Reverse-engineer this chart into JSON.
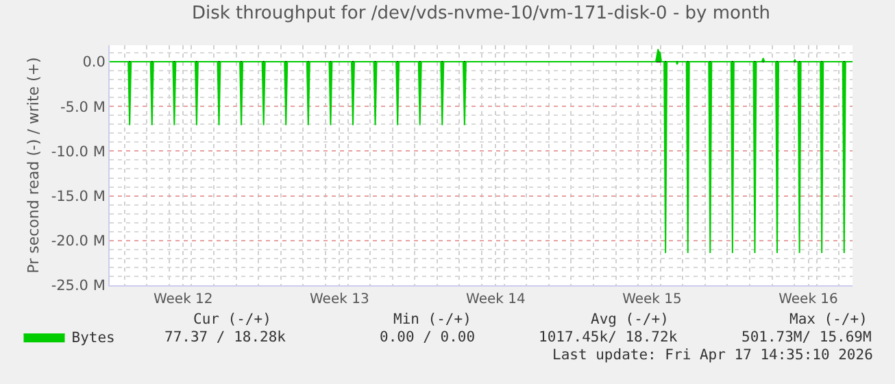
{
  "chart_data": {
    "type": "area",
    "title": "Disk throughput for /dev/vds-nvme-10/vm-171-disk-0 - by month",
    "ylabel": "Pr second read (-) / write (+)",
    "xlim": [
      "2026-03-15T08:00",
      "2026-04-17T14:30"
    ],
    "xticks": [
      {
        "value": "2026-03-18T15:00",
        "label": "Week 12"
      },
      {
        "value": "2026-03-25T15:00",
        "label": "Week 13"
      },
      {
        "value": "2026-04-01T15:00",
        "label": "Week 14"
      },
      {
        "value": "2026-04-08T15:00",
        "label": "Week 15"
      },
      {
        "value": "2026-04-15T15:00",
        "label": "Week 16"
      }
    ],
    "ylim": [
      -25,
      1.84
    ],
    "yticks": [
      {
        "value": 0,
        "label": "0.0"
      },
      {
        "value": -5,
        "label": "-5.0 M"
      },
      {
        "value": -10,
        "label": "-10.0 M"
      },
      {
        "value": -15,
        "label": "-15.0 M"
      },
      {
        "value": -20,
        "label": "-20.0 M"
      },
      {
        "value": -25,
        "label": "-25.0 M"
      }
    ],
    "grid": true,
    "legend": "bottom left",
    "series": [
      {
        "name": "Bytes",
        "color": "#00cc00",
        "x": [
          "2026-03-15T08:00",
          "2026-03-16T04:00",
          "2026-03-16T05:30",
          "2026-03-16T07:00",
          "2026-03-17T04:00",
          "2026-03-17T05:30",
          "2026-03-17T07:00",
          "2026-03-18T04:00",
          "2026-03-18T05:30",
          "2026-03-18T07:00",
          "2026-03-19T04:00",
          "2026-03-19T05:30",
          "2026-03-19T07:00",
          "2026-03-20T04:00",
          "2026-03-20T05:30",
          "2026-03-20T07:00",
          "2026-03-21T04:00",
          "2026-03-21T05:30",
          "2026-03-21T07:00",
          "2026-03-22T04:00",
          "2026-03-22T05:30",
          "2026-03-22T07:00",
          "2026-03-23T04:00",
          "2026-03-23T05:30",
          "2026-03-23T07:00",
          "2026-03-24T04:00",
          "2026-03-24T05:30",
          "2026-03-24T07:00",
          "2026-03-25T04:00",
          "2026-03-25T05:30",
          "2026-03-25T07:00",
          "2026-03-26T04:00",
          "2026-03-26T05:30",
          "2026-03-26T07:00",
          "2026-03-27T04:00",
          "2026-03-27T05:30",
          "2026-03-27T07:00",
          "2026-03-28T04:00",
          "2026-03-28T05:30",
          "2026-03-28T07:00",
          "2026-03-29T04:00",
          "2026-03-29T05:30",
          "2026-03-29T07:00",
          "2026-03-30T04:00",
          "2026-03-30T05:30",
          "2026-03-30T07:00",
          "2026-03-31T04:00",
          "2026-03-31T05:30",
          "2026-03-31T07:00",
          "2026-04-08T19:00",
          "2026-04-08T20:00",
          "2026-04-08T21:30",
          "2026-04-08T22:30",
          "2026-04-08T23:30",
          "2026-04-09T01:00",
          "2026-04-09T04:00",
          "2026-04-09T05:30",
          "2026-04-09T07:00",
          "2026-04-09T17:00",
          "2026-04-09T18:00",
          "2026-04-09T19:00",
          "2026-04-10T04:00",
          "2026-04-10T05:30",
          "2026-04-10T07:00",
          "2026-04-11T04:00",
          "2026-04-11T05:30",
          "2026-04-11T07:00",
          "2026-04-12T04:00",
          "2026-04-12T05:30",
          "2026-04-12T07:00",
          "2026-04-13T04:00",
          "2026-04-13T05:30",
          "2026-04-13T07:00",
          "2026-04-13T13:00",
          "2026-04-13T14:30",
          "2026-04-13T16:00",
          "2026-04-14T04:00",
          "2026-04-14T05:30",
          "2026-04-14T07:00",
          "2026-04-14T23:00",
          "2026-04-15T00:30",
          "2026-04-15T02:00",
          "2026-04-15T04:00",
          "2026-04-15T05:30",
          "2026-04-15T07:00",
          "2026-04-16T04:00",
          "2026-04-16T05:30",
          "2026-04-16T07:00",
          "2026-04-17T04:00",
          "2026-04-17T05:30",
          "2026-04-17T07:00",
          "2026-04-17T14:30"
        ],
        "values": [
          0,
          0,
          -7.1,
          0,
          0,
          -7.1,
          0,
          0,
          -7.1,
          0,
          0,
          -7.1,
          0,
          0,
          -7.1,
          0,
          0,
          -7.1,
          0,
          0,
          -7.1,
          0,
          0,
          -7.1,
          0,
          0,
          -7.1,
          0,
          0,
          -7.1,
          0,
          0,
          -7.1,
          0,
          0,
          -7.1,
          0,
          0,
          -7.1,
          0,
          0,
          -7.1,
          0,
          0,
          -7.1,
          0,
          0,
          -7.1,
          0,
          0,
          0.5,
          1.4,
          1.0,
          1.1,
          0,
          0,
          -21.4,
          0,
          0,
          -0.3,
          0,
          0,
          -21.4,
          0,
          0,
          -21.4,
          0,
          0,
          -21.4,
          0,
          0,
          -21.4,
          0,
          0,
          0.4,
          0,
          0,
          -21.4,
          0,
          0,
          0.2,
          0,
          0,
          -21.4,
          0,
          0,
          -21.4,
          0,
          0,
          -21.4,
          0,
          0
        ]
      }
    ],
    "annotations": [
      "Cur (-/+)",
      "Min (-/+)",
      "Avg (-/+)",
      "Max (-/+)",
      "77.37 / 18.28k",
      "0.00 / 0.00",
      "1017.45k/ 18.72k",
      "501.73M/ 15.69M",
      "Last update: Fri Apr 17 14:35:10 2026"
    ]
  }
}
